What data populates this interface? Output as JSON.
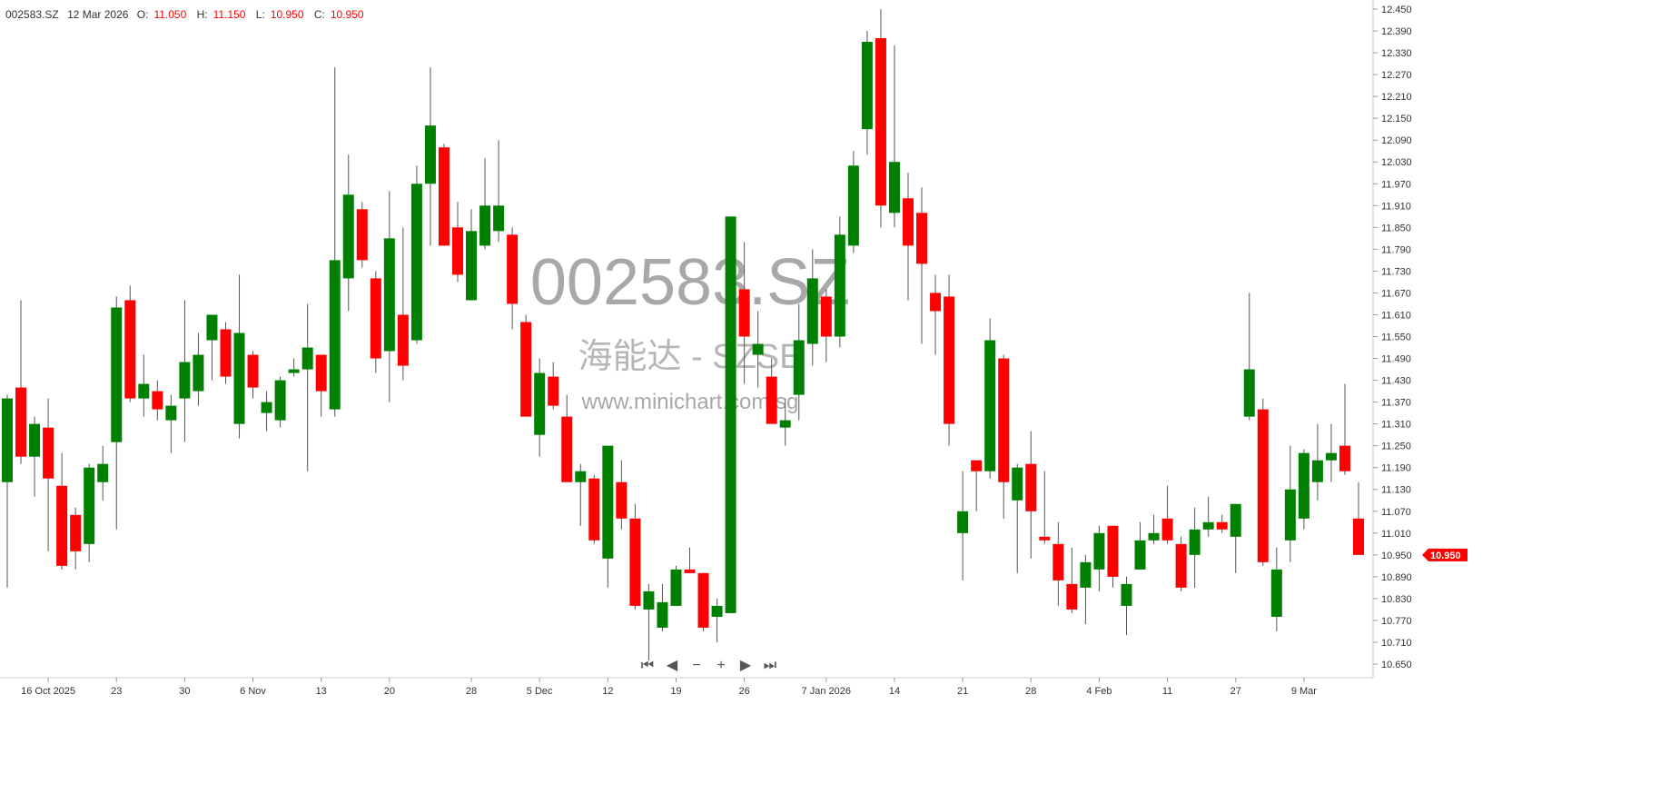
{
  "header": {
    "symbol": "002583.SZ",
    "date": "12 Mar 2026",
    "open_label": "O:",
    "open": "11.050",
    "high_label": "H:",
    "high": "11.150",
    "low_label": "L:",
    "low": "10.950",
    "close_label": "C:",
    "close": "10.950"
  },
  "watermark": {
    "symbol": "002583.SZ",
    "name": "海能达 - SZSE",
    "site": "www.minichart.com.sg"
  },
  "last_price_tag": "10.950",
  "nav_controls": [
    {
      "name": "first",
      "glyph": "⏮"
    },
    {
      "name": "prev",
      "glyph": "◀"
    },
    {
      "name": "zoom-out",
      "glyph": "−"
    },
    {
      "name": "zoom-in",
      "glyph": "+"
    },
    {
      "name": "next",
      "glyph": "▶"
    },
    {
      "name": "last",
      "glyph": "⏭"
    }
  ],
  "colors": {
    "up": "#008000",
    "down": "#ff0000",
    "wick": "#555555",
    "tag": "#ff0000"
  },
  "chart_data": {
    "type": "candlestick",
    "title": "",
    "ylim": [
      10.65,
      12.45
    ],
    "y_ticks": [
      "12.450",
      "12.390",
      "12.330",
      "12.270",
      "12.210",
      "12.150",
      "12.090",
      "12.030",
      "11.970",
      "11.910",
      "11.850",
      "11.790",
      "11.730",
      "11.670",
      "11.610",
      "11.550",
      "11.490",
      "11.430",
      "11.370",
      "11.310",
      "11.250",
      "11.190",
      "11.130",
      "11.070",
      "11.010",
      "10.950",
      "10.890",
      "10.830",
      "10.770",
      "10.710",
      "10.650"
    ],
    "x_ticks": [
      {
        "label": "16 Oct 2025",
        "index": 3
      },
      {
        "label": "23",
        "index": 8
      },
      {
        "label": "30",
        "index": 13
      },
      {
        "label": "6 Nov",
        "index": 18
      },
      {
        "label": "13",
        "index": 23
      },
      {
        "label": "20",
        "index": 28
      },
      {
        "label": "28",
        "index": 34
      },
      {
        "label": "5 Dec",
        "index": 39
      },
      {
        "label": "12",
        "index": 44
      },
      {
        "label": "19",
        "index": 49
      },
      {
        "label": "26",
        "index": 54
      },
      {
        "label": "7 Jan 2026",
        "index": 60
      },
      {
        "label": "14",
        "index": 65
      },
      {
        "label": "21",
        "index": 70
      },
      {
        "label": "28",
        "index": 75
      },
      {
        "label": "4 Feb",
        "index": 80
      },
      {
        "label": "11",
        "index": 85
      },
      {
        "label": "27",
        "index": 90
      },
      {
        "label": "9 Mar",
        "index": 95
      }
    ],
    "ohlc": [
      [
        11.15,
        11.39,
        10.86,
        11.38
      ],
      [
        11.41,
        11.65,
        11.2,
        11.22
      ],
      [
        11.22,
        11.33,
        11.11,
        11.31
      ],
      [
        11.3,
        11.38,
        10.96,
        11.16
      ],
      [
        11.14,
        11.23,
        10.91,
        10.92
      ],
      [
        11.06,
        11.08,
        10.91,
        10.96
      ],
      [
        10.98,
        11.2,
        10.93,
        11.19
      ],
      [
        11.15,
        11.25,
        11.1,
        11.2
      ],
      [
        11.26,
        11.66,
        11.02,
        11.63
      ],
      [
        11.65,
        11.69,
        11.37,
        11.38
      ],
      [
        11.38,
        11.5,
        11.33,
        11.42
      ],
      [
        11.4,
        11.43,
        11.32,
        11.35
      ],
      [
        11.32,
        11.39,
        11.23,
        11.36
      ],
      [
        11.38,
        11.65,
        11.26,
        11.48
      ],
      [
        11.4,
        11.56,
        11.36,
        11.5
      ],
      [
        11.54,
        11.61,
        11.43,
        11.61
      ],
      [
        11.57,
        11.59,
        11.42,
        11.44
      ],
      [
        11.31,
        11.72,
        11.27,
        11.56
      ],
      [
        11.5,
        11.51,
        11.38,
        11.41
      ],
      [
        11.34,
        11.4,
        11.29,
        11.37
      ],
      [
        11.32,
        11.44,
        11.3,
        11.43
      ],
      [
        11.45,
        11.49,
        11.44,
        11.46
      ],
      [
        11.46,
        11.64,
        11.18,
        11.52
      ],
      [
        11.5,
        11.5,
        11.33,
        11.4
      ],
      [
        11.35,
        12.29,
        11.33,
        11.76
      ],
      [
        11.71,
        12.05,
        11.62,
        11.94
      ],
      [
        11.9,
        11.92,
        11.74,
        11.76
      ],
      [
        11.71,
        11.73,
        11.45,
        11.49
      ],
      [
        11.51,
        11.95,
        11.37,
        11.82
      ],
      [
        11.61,
        11.85,
        11.43,
        11.47
      ],
      [
        11.54,
        12.02,
        11.53,
        11.97
      ],
      [
        11.97,
        12.29,
        11.8,
        12.13
      ],
      [
        12.07,
        12.08,
        11.8,
        11.8
      ],
      [
        11.85,
        11.92,
        11.7,
        11.72
      ],
      [
        11.65,
        11.9,
        11.65,
        11.84
      ],
      [
        11.8,
        12.04,
        11.79,
        11.91
      ],
      [
        11.84,
        12.09,
        11.81,
        11.91
      ],
      [
        11.83,
        11.85,
        11.57,
        11.64
      ],
      [
        11.59,
        11.61,
        11.33,
        11.33
      ],
      [
        11.28,
        11.49,
        11.22,
        11.45
      ],
      [
        11.44,
        11.48,
        11.35,
        11.36
      ],
      [
        11.33,
        11.39,
        11.15,
        11.15
      ],
      [
        11.15,
        11.2,
        11.03,
        11.18
      ],
      [
        11.16,
        11.17,
        10.98,
        10.99
      ],
      [
        10.94,
        11.25,
        10.86,
        11.25
      ],
      [
        11.15,
        11.21,
        11.02,
        11.05
      ],
      [
        11.05,
        11.09,
        10.8,
        10.81
      ],
      [
        10.8,
        10.87,
        10.66,
        10.85
      ],
      [
        10.75,
        10.87,
        10.74,
        10.82
      ],
      [
        10.81,
        10.92,
        10.81,
        10.91
      ],
      [
        10.91,
        10.97,
        10.9,
        10.9
      ],
      [
        10.9,
        10.9,
        10.74,
        10.75
      ],
      [
        10.78,
        10.83,
        10.71,
        10.81
      ],
      [
        10.79,
        11.88,
        10.79,
        11.88
      ],
      [
        11.68,
        11.81,
        11.42,
        11.55
      ],
      [
        11.5,
        11.62,
        11.41,
        11.53
      ],
      [
        11.44,
        11.49,
        11.31,
        11.31
      ],
      [
        11.3,
        11.38,
        11.25,
        11.32
      ],
      [
        11.39,
        11.64,
        11.32,
        11.54
      ],
      [
        11.53,
        11.79,
        11.47,
        11.71
      ],
      [
        11.66,
        11.68,
        11.48,
        11.55
      ],
      [
        11.55,
        11.88,
        11.52,
        11.83
      ],
      [
        11.8,
        12.06,
        11.78,
        12.02
      ],
      [
        12.12,
        12.39,
        12.05,
        12.36
      ],
      [
        12.37,
        12.45,
        11.85,
        11.91
      ],
      [
        11.89,
        12.35,
        11.85,
        12.03
      ],
      [
        11.93,
        12.0,
        11.65,
        11.8
      ],
      [
        11.89,
        11.96,
        11.53,
        11.75
      ],
      [
        11.67,
        11.72,
        11.5,
        11.62
      ],
      [
        11.66,
        11.72,
        11.25,
        11.31
      ],
      [
        11.01,
        11.18,
        10.88,
        11.07
      ],
      [
        11.21,
        11.21,
        11.07,
        11.18
      ],
      [
        11.18,
        11.6,
        11.16,
        11.54
      ],
      [
        11.49,
        11.5,
        11.05,
        11.15
      ],
      [
        11.1,
        11.2,
        10.9,
        11.19
      ],
      [
        11.2,
        11.29,
        10.94,
        11.07
      ],
      [
        11.0,
        11.18,
        10.98,
        10.99
      ],
      [
        10.98,
        11.04,
        10.81,
        10.88
      ],
      [
        10.87,
        10.97,
        10.79,
        10.8
      ],
      [
        10.86,
        10.95,
        10.76,
        10.93
      ],
      [
        10.91,
        11.03,
        10.85,
        11.01
      ],
      [
        11.03,
        11.03,
        10.86,
        10.89
      ],
      [
        10.81,
        10.89,
        10.73,
        10.87
      ],
      [
        10.91,
        11.04,
        10.91,
        10.99
      ],
      [
        10.99,
        11.06,
        10.98,
        11.01
      ],
      [
        11.05,
        11.14,
        10.98,
        10.99
      ],
      [
        10.98,
        11.0,
        10.85,
        10.86
      ],
      [
        10.95,
        11.08,
        10.86,
        11.02
      ],
      [
        11.02,
        11.11,
        11.0,
        11.04
      ],
      [
        11.04,
        11.06,
        11.01,
        11.02
      ],
      [
        11.0,
        11.09,
        10.9,
        11.09
      ],
      [
        11.33,
        11.67,
        11.32,
        11.46
      ],
      [
        11.35,
        11.38,
        10.92,
        10.93
      ],
      [
        10.78,
        10.97,
        10.74,
        10.91
      ],
      [
        10.99,
        11.25,
        10.93,
        11.13
      ],
      [
        11.05,
        11.24,
        11.02,
        11.23
      ],
      [
        11.15,
        11.31,
        11.1,
        11.21
      ],
      [
        11.21,
        11.31,
        11.15,
        11.23
      ],
      [
        11.25,
        11.42,
        11.17,
        11.18
      ],
      [
        11.05,
        11.15,
        10.95,
        10.95
      ]
    ]
  }
}
